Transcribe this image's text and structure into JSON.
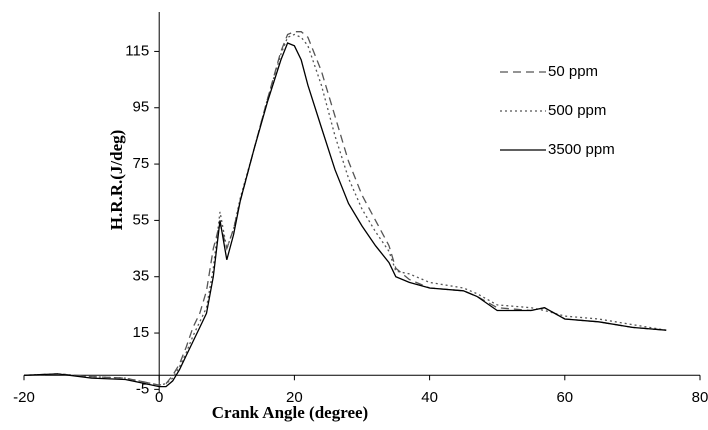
{
  "chart_data": {
    "type": "line",
    "xlabel": "Crank Angle (degree)",
    "ylabel": "H.R.R.(J/deg)",
    "x": [
      -20,
      -15,
      -10,
      -5,
      -2,
      0,
      1,
      2,
      3,
      4,
      5,
      6,
      7,
      8,
      9,
      10,
      11,
      12,
      14,
      16,
      18,
      19,
      20,
      21,
      22,
      24,
      26,
      28,
      30,
      32,
      34,
      35,
      37,
      40,
      45,
      47,
      50,
      55,
      57,
      60,
      65,
      70,
      75
    ],
    "series": [
      {
        "name": "50 ppm",
        "color": "#555555",
        "dash": "8,5",
        "values": [
          0,
          0.5,
          -0.5,
          -1,
          -2.5,
          -3.5,
          -3,
          0,
          4,
          10,
          17,
          22,
          30,
          45,
          54,
          45,
          52,
          62,
          80,
          98,
          115,
          121,
          122,
          122,
          120,
          108,
          92,
          76,
          64,
          55,
          46,
          38,
          34,
          31,
          30,
          28,
          24,
          23,
          24,
          20,
          19,
          17,
          16
        ]
      },
      {
        "name": "500 ppm",
        "color": "#555555",
        "dash": "2,3",
        "values": [
          0,
          0.5,
          -0.5,
          -1,
          -2.5,
          -3.5,
          -3,
          -1,
          3,
          8,
          14,
          19,
          24,
          38,
          58,
          45,
          52,
          63,
          80,
          98,
          114,
          120,
          121,
          120,
          117,
          103,
          85,
          70,
          59,
          51,
          44,
          37,
          36,
          33,
          31,
          29,
          25,
          24,
          23,
          21,
          20,
          18,
          16
        ]
      },
      {
        "name": "3500 ppm",
        "color": "#000000",
        "dash": "",
        "values": [
          0,
          0.5,
          -1,
          -1.5,
          -3,
          -4,
          -4,
          -2,
          2,
          7,
          12,
          17,
          22,
          35,
          55,
          41,
          50,
          62,
          80,
          97,
          112,
          118,
          117,
          112,
          103,
          88,
          73,
          61,
          53,
          46,
          40,
          35,
          33,
          31,
          30,
          28,
          23,
          23,
          24,
          20,
          19,
          17,
          16
        ]
      }
    ],
    "xlim": [
      -20,
      80
    ],
    "xticks": [
      -20,
      0,
      20,
      40,
      60,
      80
    ],
    "ylim": [
      -7,
      129
    ],
    "yticks": [
      -5,
      15,
      35,
      55,
      75,
      95,
      115
    ],
    "legend": "upper right"
  }
}
